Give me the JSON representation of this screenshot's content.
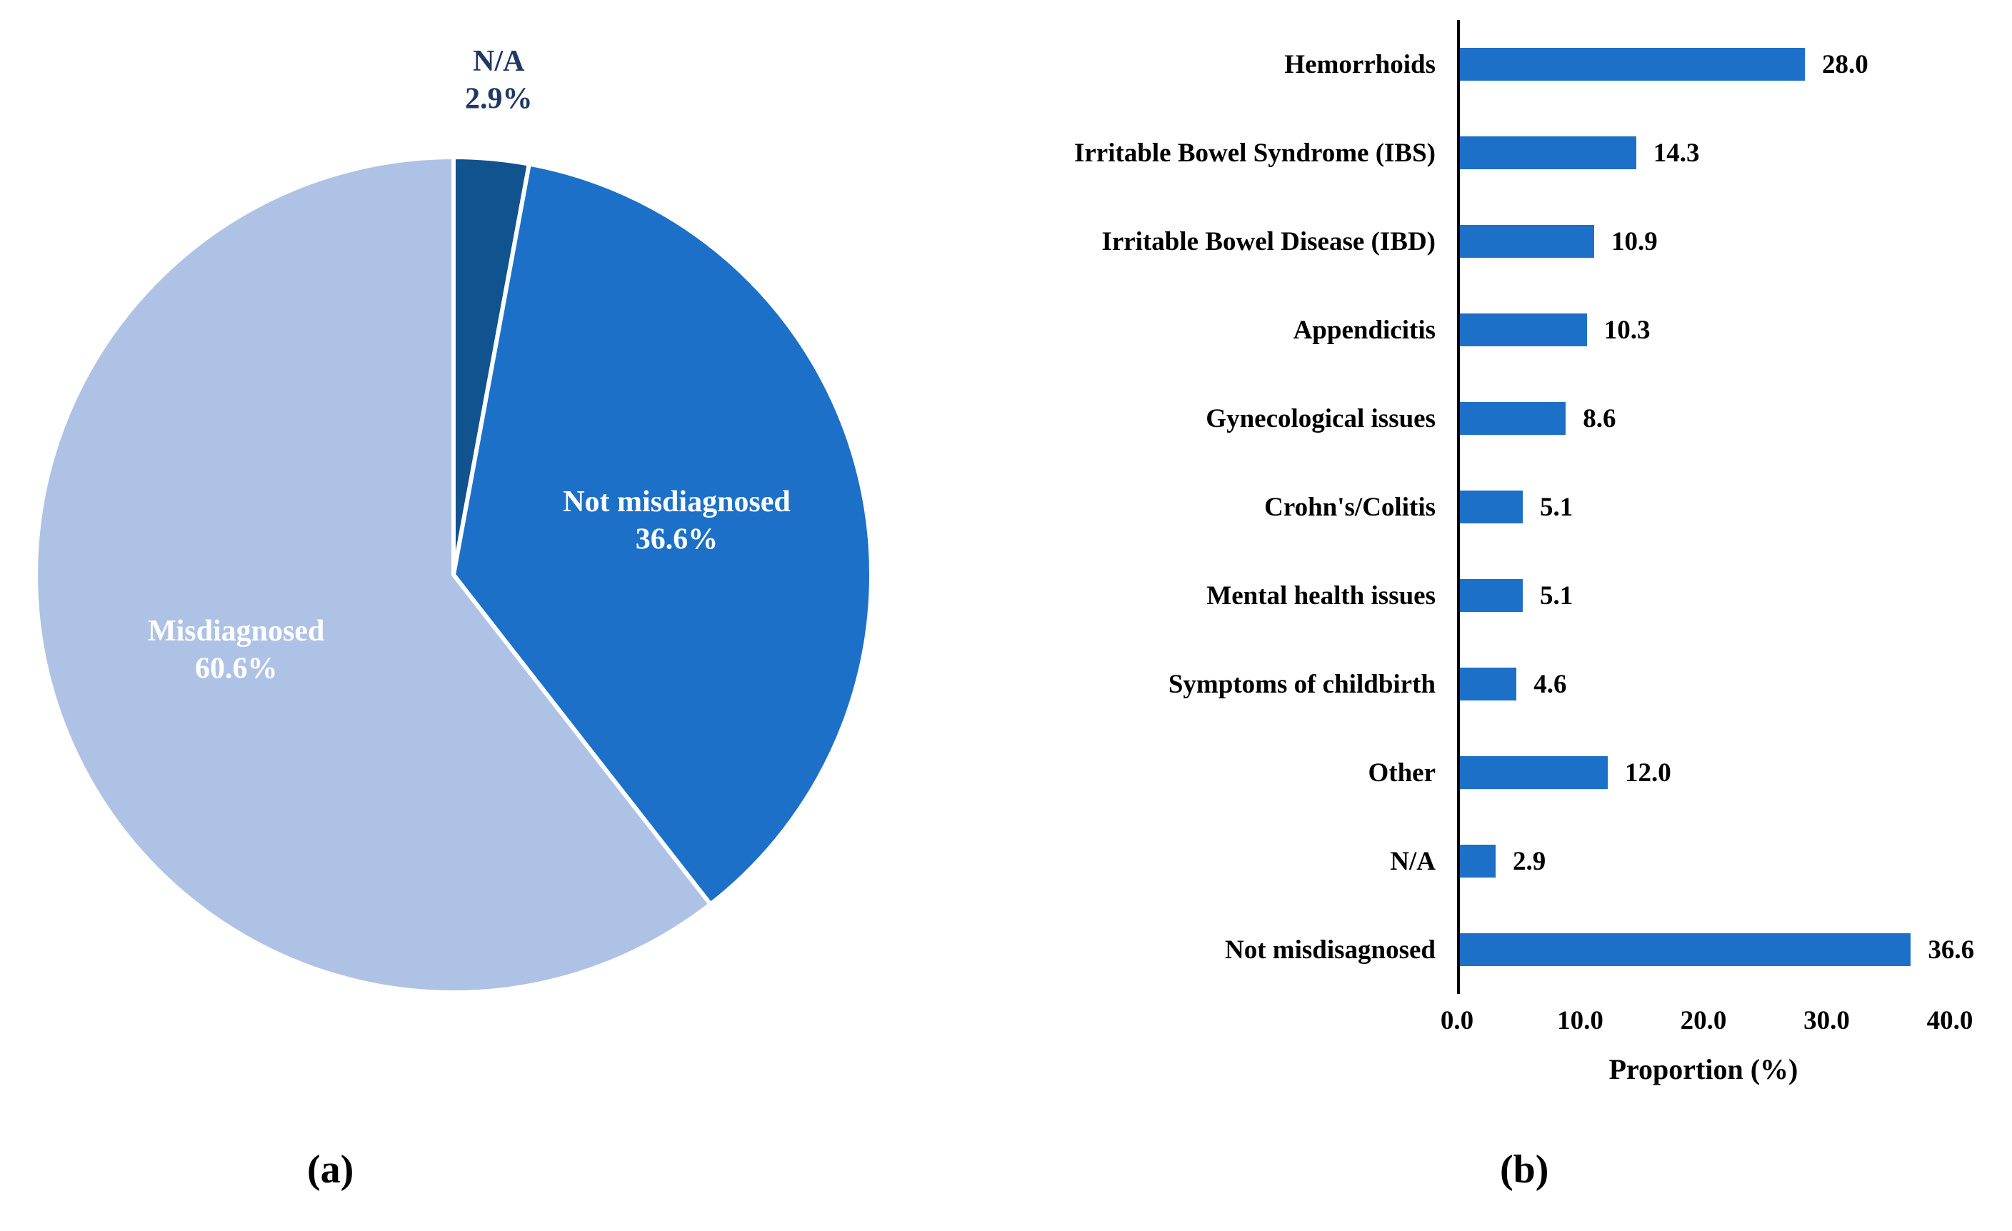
{
  "figure": {
    "caption_a": "(a)",
    "caption_b": "(b)"
  },
  "colors": {
    "primary_blue": "#1C70C8",
    "light_blue": "#AEC2E6",
    "dark_blue": "#11538F",
    "label_navy": "#1F3864",
    "text_black": "#000000",
    "background": "#FFFFFF"
  },
  "chart_data": [
    {
      "type": "pie",
      "title": "",
      "labels": [
        "N/A",
        "Not misdiagnosed",
        "Misdiagnosed"
      ],
      "values": [
        2.9,
        36.6,
        60.6
      ],
      "display_labels": [
        "N/A\n2.9%",
        "Not misdiagnosed\n36.6%",
        "Misdiagnosed\n60.6%"
      ],
      "colors": [
        "#11538F",
        "#1C70C8",
        "#AEC2E6"
      ],
      "label_positions": [
        "outside",
        "inside",
        "inside"
      ],
      "start_angle_deg": 0,
      "direction": "clockwise",
      "legend_position": "none"
    },
    {
      "type": "bar",
      "orientation": "horizontal",
      "categories": [
        "Hemorrhoids",
        "Irritable Bowel Syndrome (IBS)",
        "Irritable Bowel Disease (IBD)",
        "Appendicitis",
        "Gynecological issues",
        "Crohn's/Colitis",
        "Mental health issues",
        "Symptoms of childbirth",
        "Other",
        "N/A",
        "Not misdisagnosed"
      ],
      "values": [
        28.0,
        14.3,
        10.9,
        10.3,
        8.6,
        5.1,
        5.1,
        4.6,
        12.0,
        2.9,
        36.6
      ],
      "value_labels": [
        "28.0",
        "14.3",
        "10.9",
        "10.3",
        "8.6",
        "5.1",
        "5.1",
        "4.6",
        "12.0",
        "2.9",
        "36.6"
      ],
      "xlabel": "Proportion (%)",
      "xlim": [
        0,
        40
      ],
      "xticks": [
        "0.0",
        "10.0",
        "20.0",
        "30.0",
        "40.0"
      ],
      "bar_color": "#1C70C8",
      "grid": false,
      "legend_position": "none"
    }
  ]
}
